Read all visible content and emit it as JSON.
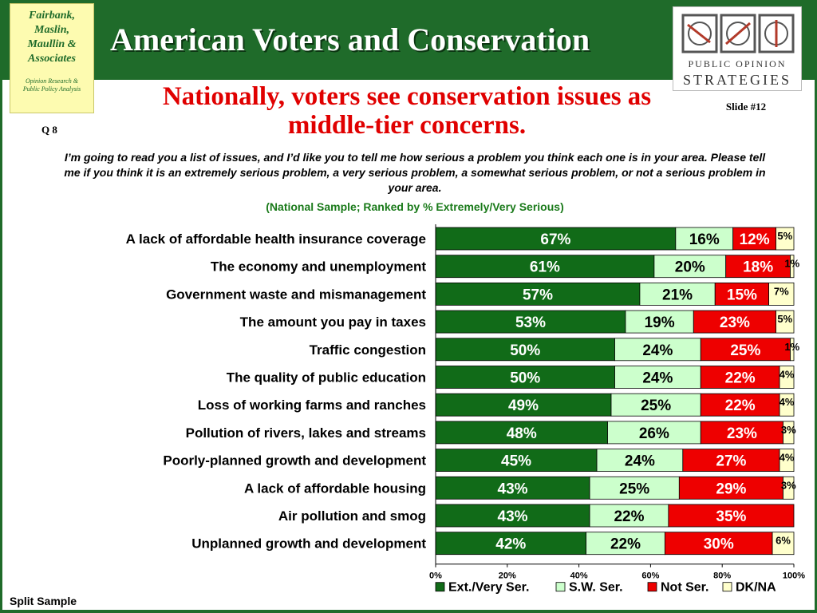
{
  "header": {
    "deck_title": "American Voters and Conservation",
    "left_logo": {
      "name": "Fairbank,\nMaslin,\nMaullin &\nAssociates",
      "tagline": "Opinion Research &\nPublic Policy Analysis"
    },
    "right_logo": {
      "line1": "PUBLIC OPINION",
      "line2": "STRATEGIES"
    }
  },
  "slide": {
    "title": "Nationally, voters see conservation issues as middle-tier concerns.",
    "number": "Slide #12",
    "question_number": "Q 8",
    "question_text": "I’m going to read you a list of issues, and I’d like you to tell me how serious a problem you think each one is in your area. Please tell me if you think it is an extremely serious problem, a very serious problem, a somewhat serious problem, or not a serious problem in your area.",
    "sample_note": "(National Sample; Ranked by % Extremely/Very Serious)",
    "footnote": "Split Sample"
  },
  "colors": {
    "brand_green": "#1f6b2a",
    "title_red": "#e00000"
  },
  "chart_data": {
    "type": "bar",
    "orientation": "horizontal",
    "stacked": true,
    "categories": [
      "A lack of affordable health insurance coverage",
      "The economy and unemployment",
      "Government waste and mismanagement",
      "The amount you pay in taxes",
      "Traffic congestion",
      "The quality of public education",
      "Loss of working farms and ranches",
      "Pollution of rivers, lakes and streams",
      "Poorly-planned growth and development",
      "A lack of affordable housing",
      "Air pollution and smog",
      "Unplanned growth and development"
    ],
    "series": [
      {
        "name": "Ext./Very Ser.",
        "color": "#116b18",
        "text_color": "#ffffff",
        "values": [
          67,
          61,
          57,
          53,
          50,
          50,
          49,
          48,
          45,
          43,
          43,
          42
        ]
      },
      {
        "name": "S.W. Ser.",
        "color": "#ccffcc",
        "text_color": "#000000",
        "values": [
          16,
          20,
          21,
          19,
          24,
          24,
          25,
          26,
          24,
          25,
          22,
          22
        ]
      },
      {
        "name": "Not Ser.",
        "color": "#ee0000",
        "text_color": "#ffffff",
        "values": [
          12,
          18,
          15,
          23,
          25,
          22,
          22,
          23,
          27,
          29,
          35,
          30
        ]
      },
      {
        "name": "DK/NA",
        "color": "#ffffcc",
        "text_color": "#000000",
        "values": [
          5,
          1,
          7,
          5,
          1,
          4,
          4,
          3,
          4,
          3,
          null,
          6
        ]
      }
    ],
    "xlim": [
      0,
      100
    ],
    "x_ticks": [
      "0%",
      "20%",
      "40%",
      "60%",
      "80%",
      "100%"
    ],
    "x_tick_values": [
      0,
      20,
      40,
      60,
      80,
      100
    ],
    "legend_position": "bottom-right",
    "grid": false,
    "title": "",
    "xlabel": "",
    "ylabel": ""
  }
}
